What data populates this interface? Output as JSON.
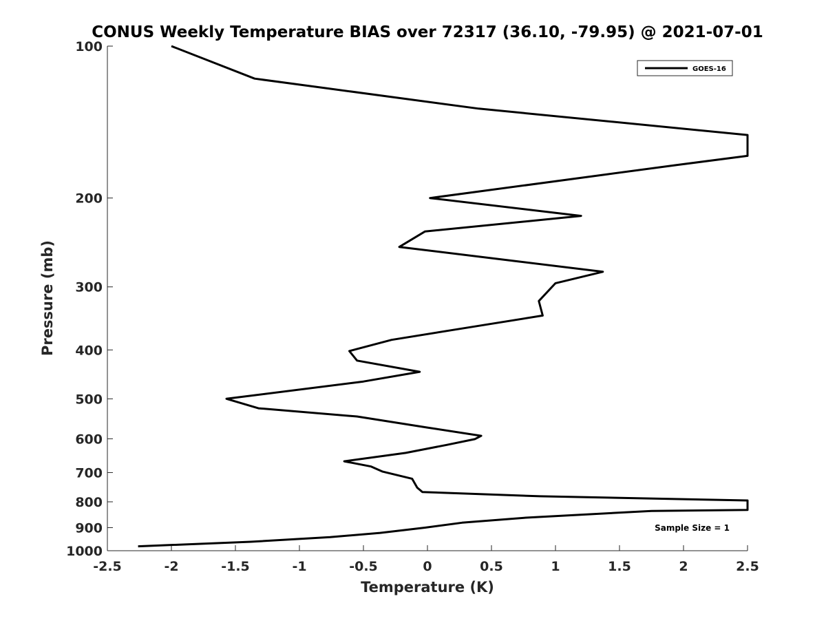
{
  "chart_data": {
    "type": "line",
    "title": "CONUS Weekly Temperature BIAS over 72317 (36.10, -79.95) @ 2021-07-01",
    "xlabel": "Temperature (K)",
    "ylabel": "Pressure (mb)",
    "xlim": [
      -2.5,
      2.5
    ],
    "ylim": [
      100,
      1000
    ],
    "yscale": "log",
    "y_reversed": true,
    "x_ticks": [
      -2.5,
      -2,
      -1.5,
      -1,
      -0.5,
      0,
      0.5,
      1,
      1.5,
      2,
      2.5
    ],
    "x_tick_labels": [
      "-2.5",
      "-2",
      "-1.5",
      "-1",
      "-0.5",
      "0",
      "0.5",
      "1",
      "1.5",
      "2",
      "2.5"
    ],
    "y_ticks": [
      100,
      200,
      300,
      400,
      500,
      600,
      700,
      800,
      900,
      1000
    ],
    "y_tick_labels": [
      "100",
      "200",
      "300",
      "400",
      "500",
      "600",
      "700",
      "800",
      "900",
      "1000"
    ],
    "grid": false,
    "legend_position": "top-right",
    "series": [
      {
        "name": "GOES-16",
        "color": "#000000",
        "points": [
          [
            -2.0,
            100
          ],
          [
            -1.35,
            116
          ],
          [
            0.4,
            133
          ],
          [
            2.5,
            150
          ],
          [
            2.5,
            165
          ],
          [
            1.95,
            172
          ],
          [
            0.02,
            200
          ],
          [
            1.2,
            217
          ],
          [
            -0.02,
            233
          ],
          [
            -0.22,
            250
          ],
          [
            1.37,
            280
          ],
          [
            1.0,
            295
          ],
          [
            0.87,
            320
          ],
          [
            0.9,
            342
          ],
          [
            0.35,
            360
          ],
          [
            -0.28,
            382
          ],
          [
            -0.61,
            402
          ],
          [
            -0.55,
            420
          ],
          [
            -0.06,
            442
          ],
          [
            -0.5,
            462
          ],
          [
            -1.57,
            500
          ],
          [
            -1.32,
            522
          ],
          [
            -0.55,
            542
          ],
          [
            0.0,
            570
          ],
          [
            0.42,
            592
          ],
          [
            0.37,
            601
          ],
          [
            0.15,
            617
          ],
          [
            -0.17,
            640
          ],
          [
            -0.65,
            665
          ],
          [
            -0.44,
            681
          ],
          [
            -0.35,
            697
          ],
          [
            -0.12,
            720
          ],
          [
            -0.08,
            750
          ],
          [
            -0.04,
            765
          ],
          [
            0.88,
            780
          ],
          [
            2.5,
            795
          ],
          [
            2.5,
            830
          ],
          [
            1.75,
            834
          ],
          [
            0.77,
            860
          ],
          [
            0.27,
            880
          ],
          [
            -0.02,
            900
          ],
          [
            -0.37,
            922
          ],
          [
            -0.76,
            940
          ],
          [
            -1.38,
            960
          ],
          [
            -2.26,
            980
          ]
        ]
      }
    ],
    "annotations": [
      {
        "text": "Sample Size = 1",
        "position": "bottom-right"
      }
    ]
  }
}
